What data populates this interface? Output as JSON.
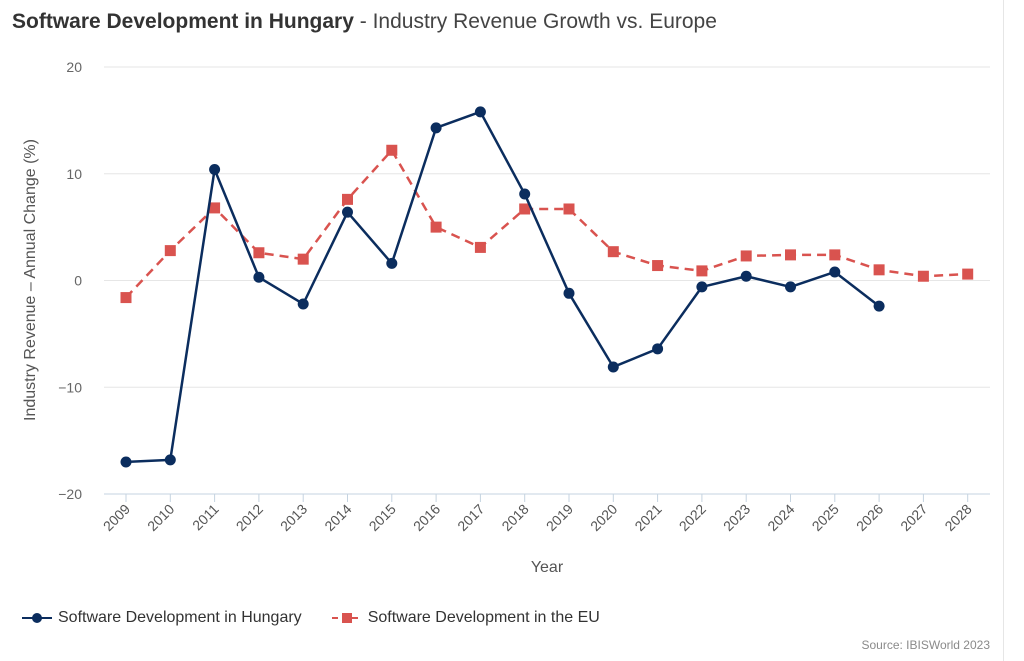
{
  "header": {
    "title": "Software Development in Hungary",
    "separator": " - ",
    "subtitle": "Industry Revenue Growth vs. Europe"
  },
  "source": "Source: IBISWorld 2023",
  "chart_data": {
    "type": "line",
    "xlabel": "Year",
    "ylabel": "Industry Revenue – Annual Change (%)",
    "ylim": [
      -20,
      20
    ],
    "yticks": [
      20,
      10,
      0,
      -10,
      -20
    ],
    "ytick_labels": [
      "20",
      "10",
      "0",
      "−10",
      "−20"
    ],
    "grid": true,
    "legend_position": "bottom-left",
    "categories": [
      "2009",
      "2010",
      "2011",
      "2012",
      "2013",
      "2014",
      "2015",
      "2016",
      "2017",
      "2018",
      "2019",
      "2020",
      "2021",
      "2022",
      "2023",
      "2024",
      "2025",
      "2026",
      "2027",
      "2028"
    ],
    "series": [
      {
        "name": "Software Development in Hungary",
        "color": "#0b2d5e",
        "marker": "circle",
        "dash": "solid",
        "values": [
          -17.0,
          -16.8,
          10.4,
          0.3,
          -2.2,
          6.4,
          1.6,
          14.3,
          15.8,
          8.1,
          -1.2,
          -8.1,
          -6.4,
          -0.6,
          0.4,
          -0.6,
          0.8,
          -2.4,
          null,
          null
        ]
      },
      {
        "name": "Software Development in the EU",
        "color": "#d9534f",
        "marker": "square",
        "dash": "dashed",
        "values": [
          -1.6,
          2.8,
          6.8,
          2.6,
          2.0,
          7.6,
          12.2,
          5.0,
          3.1,
          6.7,
          6.7,
          2.7,
          1.4,
          0.9,
          2.3,
          2.4,
          2.4,
          1.0,
          0.4,
          0.6
        ]
      }
    ]
  }
}
